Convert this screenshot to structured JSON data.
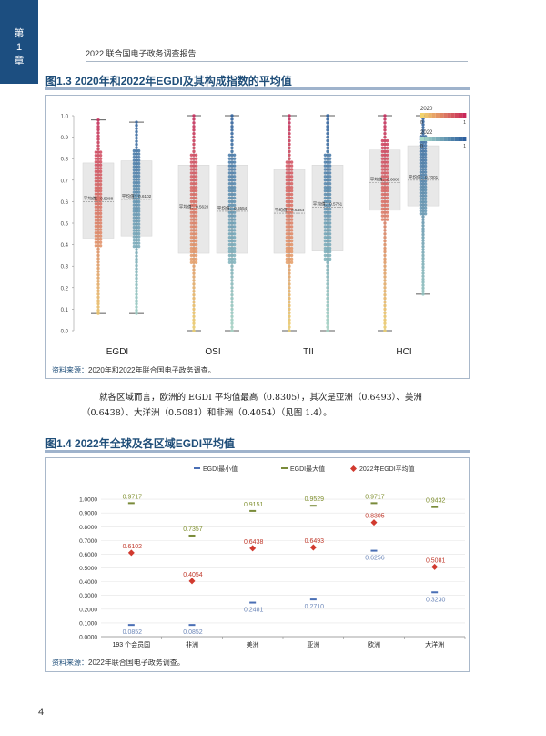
{
  "header": {
    "chapter_line1": "第",
    "chapter_line2": "1",
    "chapter_line3": "章",
    "report_title": "2022 联合国电子政务调查报告"
  },
  "figure_1_3": {
    "title": "图1.3   2020年和2022年EGDI及其构成指数的平均值",
    "source_label": "资料来源：",
    "source_text": "2020年和2022年联合国电子政务调查。",
    "legend": [
      {
        "label": "2020",
        "min": "0",
        "max": "1"
      },
      {
        "label": "2022",
        "min": "0",
        "max": "1"
      }
    ],
    "colors": {
      "y2020_low": "#f2d36b",
      "y2020_high": "#c8285a",
      "y2022_low": "#a6d8c8",
      "y2022_high": "#2c5f9e",
      "box": "#e8e8e8"
    },
    "chart_data": {
      "type": "box",
      "categories": [
        "EGDI",
        "OSI",
        "TII",
        "HCI"
      ],
      "ylim": [
        0,
        1
      ],
      "yticks": [
        "0.0",
        "0.1",
        "0.2",
        "0.3",
        "0.4",
        "0.5",
        "0.6",
        "0.7",
        "0.8",
        "0.9",
        "1.0"
      ],
      "series": [
        {
          "name": "2020",
          "means": [
            0.5988,
            0.562,
            0.5464,
            0.688
          ],
          "mean_labels": [
            "平均值：0.5988",
            "平均值：0.5620",
            "平均值：0.5464",
            "平均值：0.6880"
          ],
          "min": [
            0.08,
            0.0,
            0.0,
            0.0
          ],
          "q1": [
            0.43,
            0.36,
            0.36,
            0.56
          ],
          "q3": [
            0.78,
            0.77,
            0.75,
            0.84
          ],
          "max": [
            0.98,
            1.0,
            1.0,
            1.0
          ]
        },
        {
          "name": "2022",
          "means": [
            0.6102,
            0.5554,
            0.5751,
            0.7001
          ],
          "mean_labels": [
            "平均值：0.6102",
            "平均值：0.5554",
            "平均值：0.5751",
            "平均值：0.7001"
          ],
          "min": [
            0.08,
            0.0,
            0.0,
            0.17
          ],
          "q1": [
            0.44,
            0.36,
            0.37,
            0.58
          ],
          "q3": [
            0.79,
            0.77,
            0.77,
            0.86
          ],
          "max": [
            0.97,
            1.0,
            1.0,
            1.0
          ]
        }
      ]
    }
  },
  "paragraph": "就各区域而言，欧洲的 EGDI 平均值最高（0.8305），其次是亚洲（0.6493）、美洲（0.6438）、大洋洲（0.5081）和非洲（0.4054）（见图 1.4）。",
  "figure_1_4": {
    "title": "图1.4   2022年全球及各区域EGDI平均值",
    "source_label": "资料来源：",
    "source_text": "2022年联合国电子政务调查。",
    "legend": [
      "EGDI最小值",
      "EGDI最大值",
      "2022年EGDI平均值"
    ],
    "colors": {
      "min": "#4a6fb5",
      "max": "#7a8b3a",
      "mean": "#d13a2f",
      "max_label": "#7f8f2e",
      "min_label": "#6b86b8",
      "mean_label": "#c0392b"
    },
    "chart_data": {
      "type": "dot",
      "categories": [
        "193 个会员国",
        "非洲",
        "美洲",
        "亚洲",
        "欧洲",
        "大洋洲"
      ],
      "ylim": [
        0,
        1.1
      ],
      "yticks": [
        "0.0000",
        "0.1000",
        "0.2000",
        "0.3000",
        "0.4000",
        "0.5000",
        "0.6000",
        "0.7000",
        "0.8000",
        "0.9000",
        "1.0000"
      ],
      "series": [
        {
          "name": "EGDI最小值",
          "values": [
            0.0852,
            0.0852,
            0.2481,
            0.271,
            0.6256,
            0.323
          ],
          "labels": [
            "0.0852",
            "0.0852",
            "0.2481",
            "0.2710",
            "0.6256",
            "0.3230"
          ]
        },
        {
          "name": "EGDI最大值",
          "values": [
            0.9717,
            0.7357,
            0.9151,
            0.9529,
            0.9717,
            0.9432
          ],
          "labels": [
            "0.9717",
            "0.7357",
            "0.9151",
            "0.9529",
            "0.9717",
            "0.9432"
          ]
        },
        {
          "name": "2022年EGDI平均值",
          "values": [
            0.6102,
            0.4054,
            0.6438,
            0.6493,
            0.8305,
            0.5081
          ],
          "labels": [
            "0.6102",
            "0.4054",
            "0.6438",
            "0.6493",
            "0.8305",
            "0.5081"
          ]
        }
      ]
    }
  },
  "page_number": "4"
}
